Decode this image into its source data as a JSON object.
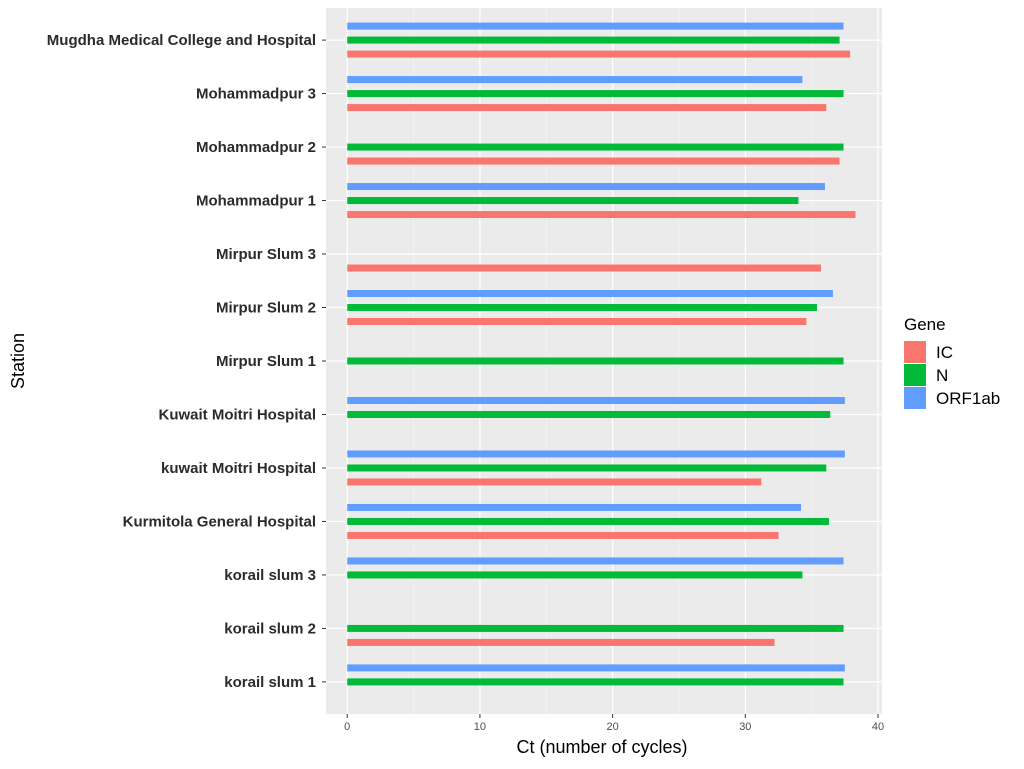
{
  "chart_data": {
    "type": "bar",
    "orientation": "horizontal",
    "xlabel": "Ct (number of cycles)",
    "ylabel": "Station",
    "xlim": [
      -1.6,
      40.3
    ],
    "xticks": [
      0,
      10,
      20,
      30,
      40
    ],
    "grid": true,
    "legend": {
      "title": "Gene",
      "position": "right",
      "entries": [
        "IC",
        "N",
        "ORF1ab"
      ]
    },
    "colors": {
      "IC": "#F8766D",
      "N": "#00BA38",
      "ORF1ab": "#619CFF"
    },
    "categories": [
      "korail slum 1",
      "korail slum 2",
      "korail slum 3",
      "Kurmitola General Hospital",
      "kuwait Moitri Hospital",
      "Kuwait Moitri Hospital",
      "Mirpur Slum 1",
      "Mirpur Slum 2",
      "Mirpur Slum 3",
      "Mohammadpur 1",
      "Mohammadpur 2",
      "Mohammadpur 3",
      "Mugdha Medical College and Hospital"
    ],
    "series": [
      {
        "name": "IC",
        "values": [
          null,
          32.2,
          null,
          32.5,
          31.2,
          null,
          null,
          34.6,
          35.7,
          38.3,
          37.1,
          36.1,
          37.9
        ]
      },
      {
        "name": "N",
        "values": [
          37.4,
          37.4,
          34.3,
          36.3,
          36.1,
          36.4,
          37.4,
          35.4,
          null,
          34.0,
          37.4,
          37.4,
          37.1
        ]
      },
      {
        "name": "ORF1ab",
        "values": [
          37.5,
          null,
          37.4,
          34.2,
          37.5,
          37.5,
          null,
          36.6,
          null,
          36.0,
          null,
          34.3,
          37.4
        ]
      }
    ]
  }
}
